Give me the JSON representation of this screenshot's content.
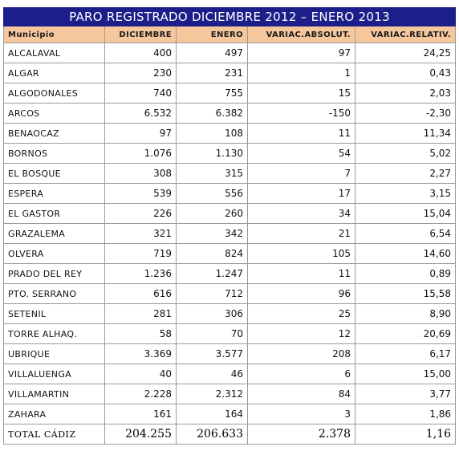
{
  "title": "PARO REGISTRADO DICIEMBRE 2012 – ENERO 2013",
  "columns": {
    "municipio": "Municipio",
    "diciembre": "DICIEMBRE",
    "enero": "ENERO",
    "variac_absolut": "VARIAC.ABSOLUT.",
    "variac_relativ": "VARIAC.RELATIV."
  },
  "rows": [
    {
      "municipio": "ALCALAVAL",
      "diciembre": "400",
      "enero": "497",
      "absolut": "97",
      "relativ": "24,25"
    },
    {
      "municipio": "ALGAR",
      "diciembre": "230",
      "enero": "231",
      "absolut": "1",
      "relativ": "0,43"
    },
    {
      "municipio": "ALGODONALES",
      "diciembre": "740",
      "enero": "755",
      "absolut": "15",
      "relativ": "2,03"
    },
    {
      "municipio": "ARCOS",
      "diciembre": "6.532",
      "enero": "6.382",
      "absolut": "-150",
      "relativ": "-2,30"
    },
    {
      "municipio": "BENAOCAZ",
      "diciembre": "97",
      "enero": "108",
      "absolut": "11",
      "relativ": "11,34"
    },
    {
      "municipio": "BORNOS",
      "diciembre": "1.076",
      "enero": "1.130",
      "absolut": "54",
      "relativ": "5,02"
    },
    {
      "municipio": "EL BOSQUE",
      "diciembre": "308",
      "enero": "315",
      "absolut": "7",
      "relativ": "2,27"
    },
    {
      "municipio": "ESPERA",
      "diciembre": "539",
      "enero": "556",
      "absolut": "17",
      "relativ": "3,15"
    },
    {
      "municipio": "EL GASTOR",
      "diciembre": "226",
      "enero": "260",
      "absolut": "34",
      "relativ": "15,04"
    },
    {
      "municipio": "GRAZALEMA",
      "diciembre": "321",
      "enero": "342",
      "absolut": "21",
      "relativ": "6,54"
    },
    {
      "municipio": "OLVERA",
      "diciembre": "719",
      "enero": "824",
      "absolut": "105",
      "relativ": "14,60"
    },
    {
      "municipio": "PRADO DEL REY",
      "diciembre": "1.236",
      "enero": "1.247",
      "absolut": "11",
      "relativ": "0,89"
    },
    {
      "municipio": "PTO. SERRANO",
      "diciembre": "616",
      "enero": "712",
      "absolut": "96",
      "relativ": "15,58"
    },
    {
      "municipio": "SETENIL",
      "diciembre": "281",
      "enero": "306",
      "absolut": "25",
      "relativ": "8,90"
    },
    {
      "municipio": "TORRE ALHAQ.",
      "diciembre": "58",
      "enero": "70",
      "absolut": "12",
      "relativ": "20,69"
    },
    {
      "municipio": "UBRIQUE",
      "diciembre": "3.369",
      "enero": "3.577",
      "absolut": "208",
      "relativ": "6,17"
    },
    {
      "municipio": "VILLALUENGA",
      "diciembre": "40",
      "enero": "46",
      "absolut": "6",
      "relativ": "15,00"
    },
    {
      "municipio": "VILLAMARTIN",
      "diciembre": "2.228",
      "enero": "2.312",
      "absolut": "84",
      "relativ": "3,77"
    },
    {
      "municipio": "ZAHARA",
      "diciembre": "161",
      "enero": "164",
      "absolut": "3",
      "relativ": "1,86"
    }
  ],
  "total": {
    "label": "TOTAL CÁDIZ",
    "diciembre": "204.255",
    "enero": "206.633",
    "absolut": "2.378",
    "relativ": "1,16"
  },
  "colors": {
    "title_bg": "#1c1f8a",
    "header_bg": "#f6c79d",
    "border": "#9a9a9a"
  }
}
